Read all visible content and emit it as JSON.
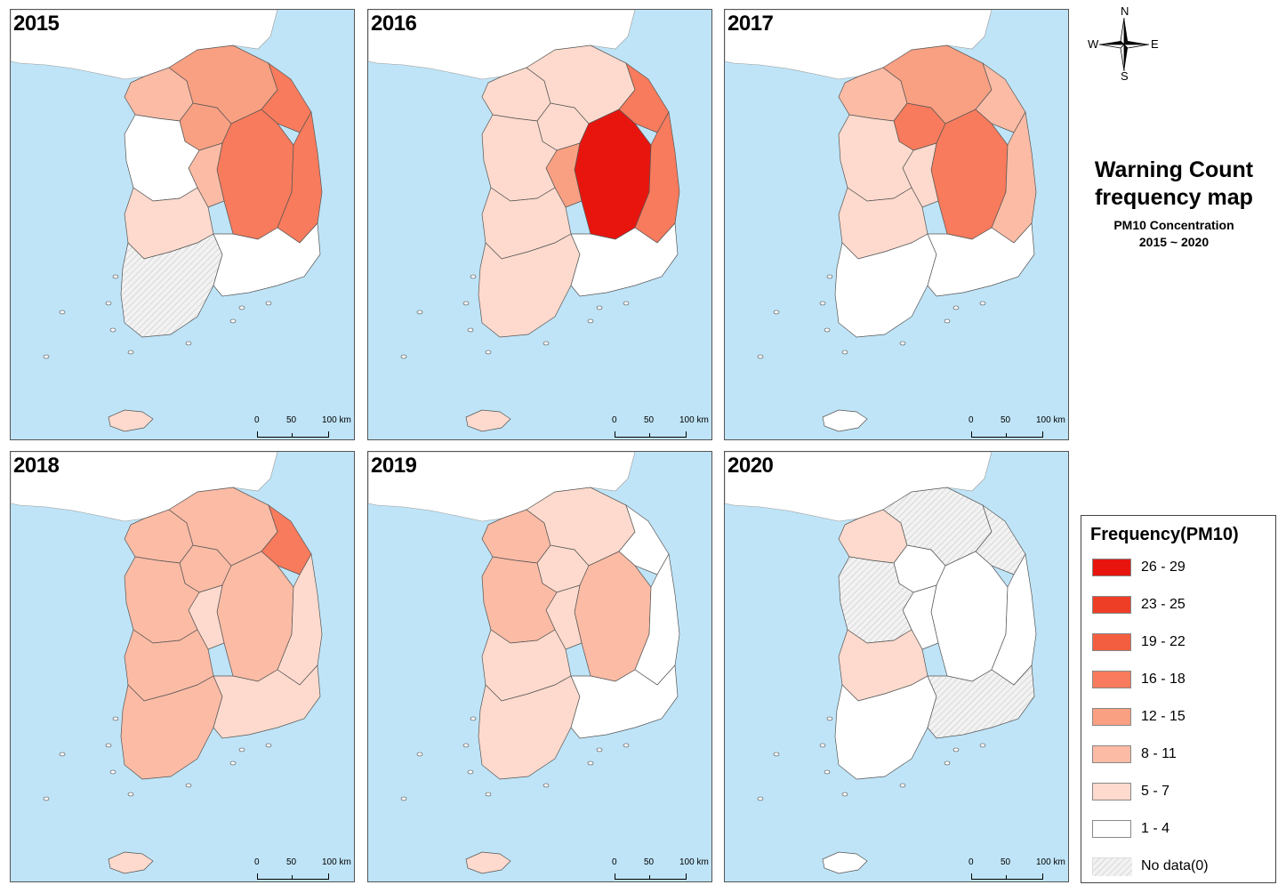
{
  "compass": {
    "n": "N",
    "s": "S",
    "e": "E",
    "w": "W"
  },
  "title": {
    "line1": "Warning Count",
    "line2": "frequency map",
    "sub1": "PM10 Concentration",
    "sub2": "2015 ~ 2020"
  },
  "scalebar": {
    "t0": "0",
    "t1": "50",
    "t2": "100 km"
  },
  "colors": {
    "sea": "#bfe4f7",
    "north_land": "#ffffff",
    "border": "#555555",
    "no_data": "#e6e6e6"
  },
  "legend": {
    "title": "Frequency(PM10)",
    "items": [
      {
        "label": "26 - 29",
        "color": "#e8150f"
      },
      {
        "label": "23 - 25",
        "color": "#ee3e26"
      },
      {
        "label": "19 - 22",
        "color": "#f45e40"
      },
      {
        "label": "16 - 18",
        "color": "#f77b5c"
      },
      {
        "label": "12 - 15",
        "color": "#f9a082"
      },
      {
        "label": "8 - 11",
        "color": "#fbbba5"
      },
      {
        "label": "5 - 7",
        "color": "#fddacd"
      },
      {
        "label": "1 - 4",
        "color": "#ffffff"
      },
      {
        "label": "No data(0)",
        "color": "#ececec"
      }
    ]
  },
  "maps": [
    {
      "year": "2015",
      "regions": {
        "nw": "8 - 11",
        "gy": "12 - 15",
        "gw": "12 - 15",
        "east": "16 - 18",
        "ne_coast": "16 - 18",
        "cb": "8 - 11",
        "cn": "1 - 4",
        "jb": "5 - 7",
        "jn": "No data(0)",
        "gb": "16 - 18",
        "gn": "1 - 4",
        "jeju": "5 - 7"
      }
    },
    {
      "year": "2016",
      "regions": {
        "nw": "5 - 7",
        "gy": "5 - 7",
        "gw": "5 - 7",
        "east": "26 - 29",
        "ne_coast": "16 - 18",
        "cb": "12 - 15",
        "cn": "5 - 7",
        "jb": "5 - 7",
        "jn": "5 - 7",
        "gb": "16 - 18",
        "gn": "1 - 4",
        "jeju": "5 - 7"
      }
    },
    {
      "year": "2017",
      "regions": {
        "nw": "8 - 11",
        "gy": "16 - 18",
        "gw": "12 - 15",
        "east": "16 - 18",
        "ne_coast": "8 - 11",
        "cb": "5 - 7",
        "cn": "5 - 7",
        "jb": "5 - 7",
        "jn": "1 - 4",
        "gb": "8 - 11",
        "gn": "1 - 4",
        "jeju": "1 - 4"
      }
    },
    {
      "year": "2018",
      "regions": {
        "nw": "8 - 11",
        "gy": "8 - 11",
        "gw": "8 - 11",
        "east": "8 - 11",
        "ne_coast": "16 - 18",
        "cb": "5 - 7",
        "cn": "8 - 11",
        "jb": "8 - 11",
        "jn": "8 - 11",
        "gb": "5 - 7",
        "gn": "5 - 7",
        "jeju": "5 - 7"
      }
    },
    {
      "year": "2019",
      "regions": {
        "nw": "8 - 11",
        "gy": "5 - 7",
        "gw": "5 - 7",
        "east": "8 - 11",
        "ne_coast": "1 - 4",
        "cb": "5 - 7",
        "cn": "8 - 11",
        "jb": "5 - 7",
        "jn": "5 - 7",
        "gb": "1 - 4",
        "gn": "1 - 4",
        "jeju": "5 - 7"
      }
    },
    {
      "year": "2020",
      "regions": {
        "nw": "5 - 7",
        "gy": "1 - 4",
        "gw": "No data(0)",
        "east": "1 - 4",
        "ne_coast": "No data(0)",
        "cb": "1 - 4",
        "cn": "No data(0)",
        "jb": "5 - 7",
        "jn": "1 - 4",
        "gb": "1 - 4",
        "gn": "No data(0)",
        "jeju": "1 - 4"
      }
    }
  ]
}
